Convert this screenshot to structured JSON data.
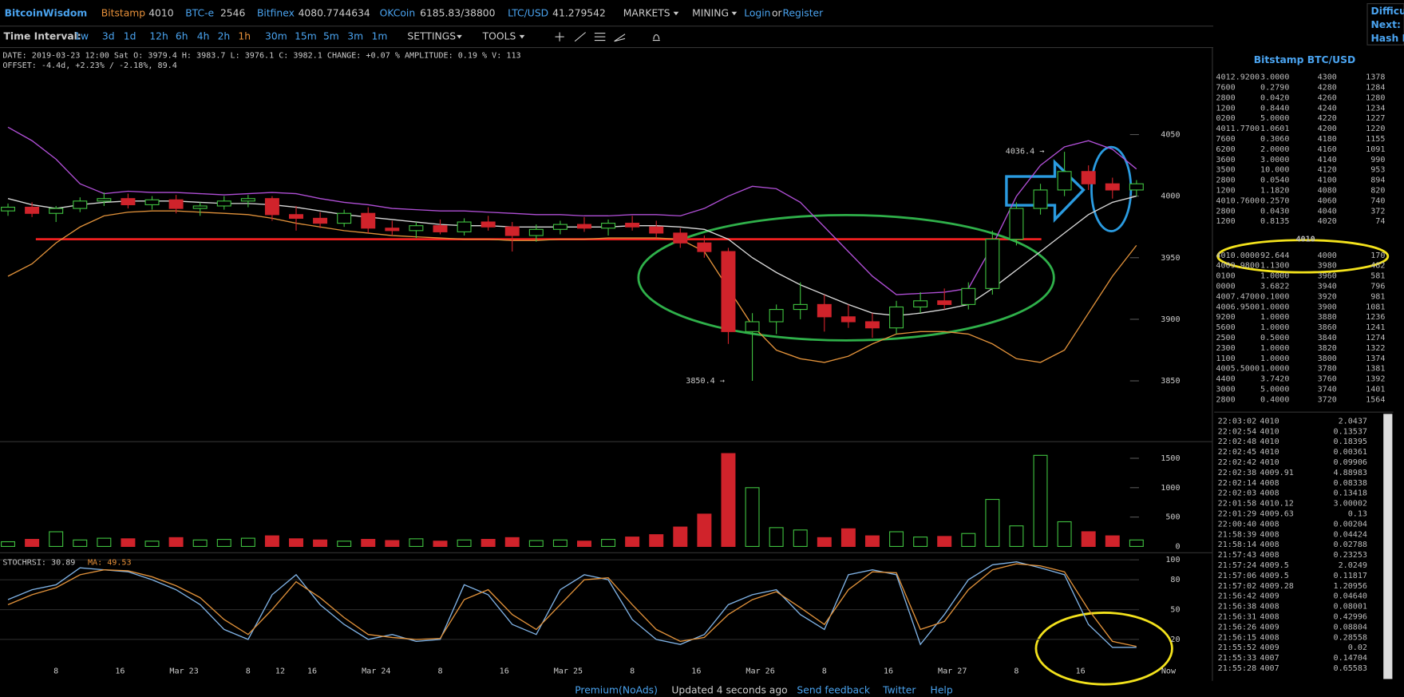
{
  "header": {
    "logo": "BitcoinWisdom",
    "tickers": [
      {
        "market": "Bitstamp",
        "price": "4010"
      },
      {
        "market": "BTC-e",
        "price": "2546"
      },
      {
        "market": "Bitfinex",
        "price": "4080.7744634"
      },
      {
        "market": "OKCoin",
        "price": "6185.83/38800"
      },
      {
        "market": "LTC/USD",
        "price": "41.279542"
      }
    ],
    "menus": [
      "MARKETS",
      "MINING"
    ],
    "login": "Login",
    "or": "or",
    "register": "Register",
    "side_box": [
      "Difficult",
      "Next:",
      "Hash Ra"
    ]
  },
  "toolbar": {
    "label": "Time Interval:",
    "intervals": [
      "1w",
      "3d",
      "1d",
      "12h",
      "6h",
      "4h",
      "2h",
      "1h",
      "30m",
      "15m",
      "5m",
      "3m",
      "1m"
    ],
    "active_index": 7,
    "settings": "SETTINGS",
    "tools": "TOOLS"
  },
  "info": {
    "line1": "DATE: 2019-03-23 12:00 Sat   O: 3979.4   H: 3983.7   L: 3976.1   C: 3982.1   CHANGE: +0.07 %   AMPLITUDE: 0.19 %   V: 113",
    "line2": "OFFSET: -4.4d, +2.23% / -2.18%, 89.4"
  },
  "chart_data": [
    {
      "type": "candlestick",
      "xlim": [
        1,
        147
      ],
      "ylim": [
        3805,
        4085
      ],
      "yticks": [
        3850,
        3900,
        3950,
        4000,
        4050
      ],
      "up_color": "#3fbf3f",
      "down_color": "#d0232b",
      "annotations": [
        {
          "text": "4036.4 →"
        },
        {
          "text": "3850.4 →"
        }
      ],
      "x": [
        2,
        5,
        8,
        11,
        14,
        17,
        20,
        23,
        26,
        29,
        32,
        35,
        38,
        41,
        44,
        47,
        50,
        53,
        56,
        59,
        62,
        65,
        68,
        71,
        74,
        77,
        80,
        83,
        86,
        89,
        92,
        95,
        98,
        101,
        104,
        107,
        110,
        113,
        116,
        119,
        122,
        125,
        128,
        131,
        134,
        137,
        140,
        143
      ],
      "open": [
        3988,
        3991,
        3986,
        3990,
        3996,
        3998,
        3993,
        3997,
        3990,
        3992,
        3996,
        3998,
        3985,
        3982,
        3978,
        3986,
        3974,
        3972,
        3976,
        3971,
        3979,
        3975,
        3968,
        3973,
        3977,
        3974,
        3978,
        3975,
        3970,
        3962,
        3955,
        3890,
        3898,
        3908,
        3912,
        3902,
        3898,
        3893,
        3910,
        3915,
        3912,
        3925,
        3965,
        3990,
        4005,
        4020,
        4010,
        4005
      ],
      "high": [
        3994,
        3995,
        3992,
        3999,
        4003,
        4002,
        4000,
        4001,
        3995,
        4000,
        4001,
        4000,
        3992,
        3987,
        3989,
        3991,
        3980,
        3979,
        3981,
        3982,
        3984,
        3979,
        3977,
        3980,
        3983,
        3981,
        3984,
        3980,
        3974,
        3968,
        3958,
        3905,
        3912,
        3930,
        3920,
        3912,
        3905,
        3915,
        3922,
        3925,
        3930,
        3972,
        3995,
        4010,
        4036,
        4025,
        4015,
        4013
      ],
      "low": [
        3984,
        3983,
        3979,
        3987,
        3992,
        3990,
        3989,
        3986,
        3984,
        3989,
        3991,
        3980,
        3972,
        3974,
        3975,
        3970,
        3968,
        3966,
        3969,
        3968,
        3972,
        3955,
        3963,
        3969,
        3971,
        3968,
        3972,
        3966,
        3958,
        3950,
        3880,
        3850,
        3888,
        3900,
        3890,
        3893,
        3885,
        3888,
        3905,
        3908,
        3908,
        3920,
        3960,
        3985,
        4000,
        4005,
        3998,
        4000
      ],
      "close": [
        3991,
        3986,
        3990,
        3996,
        3998,
        3993,
        3997,
        3990,
        3992,
        3996,
        3998,
        3985,
        3982,
        3978,
        3986,
        3974,
        3972,
        3976,
        3971,
        3979,
        3975,
        3968,
        3973,
        3977,
        3974,
        3978,
        3975,
        3970,
        3962,
        3955,
        3890,
        3898,
        3908,
        3912,
        3902,
        3898,
        3893,
        3910,
        3915,
        3912,
        3925,
        3965,
        3990,
        4005,
        4020,
        4010,
        4005,
        4010
      ],
      "series": [
        {
          "color": "#b04fd6",
          "values": [
            4056,
            4045,
            4030,
            4010,
            4002,
            4004,
            4003,
            4003,
            4002,
            4001,
            4002,
            4003,
            4002,
            3998,
            3995,
            3993,
            3990,
            3989,
            3988,
            3988,
            3987,
            3986,
            3985,
            3985,
            3984,
            3984,
            3985,
            3985,
            3984,
            3990,
            4000,
            4008,
            4006,
            3995,
            3975,
            3955,
            3935,
            3920,
            3921,
            3922,
            3925,
            3960,
            4000,
            4025,
            4040,
            4045,
            4038,
            4022
          ]
        },
        {
          "color": "#d8d8d8",
          "values": [
            3998,
            3993,
            3990,
            3993,
            3995,
            3996,
            3996,
            3996,
            3995,
            3994,
            3994,
            3993,
            3991,
            3988,
            3985,
            3983,
            3981,
            3979,
            3977,
            3976,
            3976,
            3975,
            3975,
            3975,
            3975,
            3975,
            3976,
            3976,
            3975,
            3973,
            3965,
            3950,
            3938,
            3928,
            3920,
            3912,
            3905,
            3903,
            3905,
            3908,
            3912,
            3925,
            3940,
            3955,
            3970,
            3985,
            3995,
            4000
          ]
        },
        {
          "color": "#e0913a",
          "values": [
            3935,
            3945,
            3962,
            3975,
            3984,
            3987,
            3988,
            3988,
            3987,
            3986,
            3985,
            3982,
            3978,
            3975,
            3972,
            3970,
            3968,
            3967,
            3966,
            3965,
            3965,
            3964,
            3964,
            3965,
            3965,
            3966,
            3966,
            3966,
            3965,
            3955,
            3925,
            3895,
            3875,
            3868,
            3865,
            3870,
            3880,
            3888,
            3890,
            3890,
            3888,
            3880,
            3868,
            3865,
            3875,
            3905,
            3935,
            3960
          ]
        }
      ]
    },
    {
      "type": "bar",
      "xlim": [
        1,
        147
      ],
      "ylim": [
        0,
        1600
      ],
      "yticks": [
        0,
        500,
        1000,
        1500
      ],
      "x": [
        2,
        5,
        8,
        11,
        14,
        17,
        20,
        23,
        26,
        29,
        32,
        35,
        38,
        41,
        44,
        47,
        50,
        53,
        56,
        59,
        62,
        65,
        68,
        71,
        74,
        77,
        80,
        83,
        86,
        89,
        92,
        95,
        98,
        101,
        104,
        107,
        110,
        113,
        116,
        119,
        122,
        125,
        128,
        131,
        134,
        137,
        140,
        143
      ],
      "values": [
        80,
        120,
        250,
        110,
        140,
        130,
        90,
        150,
        110,
        120,
        140,
        180,
        130,
        110,
        90,
        120,
        100,
        130,
        90,
        110,
        120,
        150,
        100,
        110,
        90,
        120,
        160,
        200,
        330,
        550,
        1580,
        1000,
        320,
        280,
        150,
        300,
        180,
        250,
        160,
        170,
        220,
        800,
        350,
        1550,
        420,
        250,
        180,
        110
      ]
    },
    {
      "type": "line",
      "xlim": [
        1,
        147
      ],
      "ylim": [
        0,
        100
      ],
      "yticks": [
        20,
        50,
        80,
        100
      ],
      "grid": true,
      "label": "STOCHRSI: 30.89",
      "ma_label": "MA: 49.53",
      "xticks": [
        {
          "value": 8,
          "label": "8"
        },
        {
          "value": 16,
          "label": "16"
        },
        {
          "value": 24,
          "label": "Mar 23"
        },
        {
          "value": 32,
          "label": "8"
        },
        {
          "value": 36,
          "label": "12"
        },
        {
          "value": 40,
          "label": "16"
        },
        {
          "value": 48,
          "label": "Mar 24"
        },
        {
          "value": 56,
          "label": "8"
        },
        {
          "value": 64,
          "label": "16"
        },
        {
          "value": 72,
          "label": "Mar 25"
        },
        {
          "value": 80,
          "label": "8"
        },
        {
          "value": 88,
          "label": "16"
        },
        {
          "value": 96,
          "label": "Mar 26"
        },
        {
          "value": 104,
          "label": "8"
        },
        {
          "value": 112,
          "label": "16"
        },
        {
          "value": 120,
          "label": "Mar 27"
        },
        {
          "value": 128,
          "label": "8"
        },
        {
          "value": 136,
          "label": "16"
        },
        {
          "value": 147,
          "label": "Now"
        }
      ],
      "x": [
        2,
        5,
        8,
        11,
        14,
        17,
        20,
        23,
        26,
        29,
        32,
        35,
        38,
        41,
        44,
        47,
        50,
        53,
        56,
        59,
        62,
        65,
        68,
        71,
        74,
        77,
        80,
        83,
        86,
        89,
        92,
        95,
        98,
        101,
        104,
        107,
        110,
        113,
        116,
        119,
        122,
        125,
        128,
        131,
        134,
        137,
        140,
        143
      ],
      "series": [
        {
          "color": "#7fb2e5",
          "values": [
            60,
            70,
            75,
            92,
            90,
            88,
            80,
            70,
            55,
            30,
            20,
            65,
            85,
            55,
            35,
            20,
            25,
            18,
            20,
            75,
            65,
            35,
            25,
            70,
            85,
            80,
            40,
            20,
            15,
            25,
            55,
            65,
            70,
            45,
            30,
            85,
            90,
            85,
            15,
            45,
            80,
            95,
            98,
            92,
            85,
            35,
            12,
            12
          ]
        },
        {
          "color": "#e0913a",
          "values": [
            55,
            65,
            72,
            85,
            90,
            89,
            83,
            74,
            62,
            40,
            25,
            50,
            78,
            62,
            42,
            25,
            22,
            20,
            21,
            60,
            70,
            45,
            30,
            55,
            80,
            82,
            55,
            30,
            18,
            22,
            45,
            60,
            68,
            52,
            35,
            70,
            88,
            87,
            30,
            38,
            70,
            90,
            96,
            94,
            88,
            50,
            18,
            13
          ]
        }
      ]
    }
  ],
  "order_book": {
    "title": "Bitstamp BTC/USD",
    "last": "4010",
    "asks": [
      [
        "4012.9200",
        "3.0000",
        "4300",
        "1378"
      ],
      [
        "7600",
        "0.2790",
        "4280",
        "1284"
      ],
      [
        "2800",
        "0.0420",
        "4260",
        "1280"
      ],
      [
        "1200",
        "0.8440",
        "4240",
        "1234"
      ],
      [
        "0200",
        "5.0000",
        "4220",
        "1227"
      ],
      [
        "4011.7700",
        "1.0601",
        "4200",
        "1220"
      ],
      [
        "7600",
        "0.3060",
        "4180",
        "1155"
      ],
      [
        "6200",
        "2.0000",
        "4160",
        "1091"
      ],
      [
        "3600",
        "3.0000",
        "4140",
        "990"
      ],
      [
        "3500",
        "10.000",
        "4120",
        "953"
      ],
      [
        "2800",
        "0.0540",
        "4100",
        "894"
      ],
      [
        "1200",
        "1.1820",
        "4080",
        "820"
      ],
      [
        "4010.7600",
        "0.2570",
        "4060",
        "740"
      ],
      [
        "2800",
        "0.0430",
        "4040",
        "372"
      ],
      [
        "1200",
        "0.8135",
        "4020",
        "74"
      ]
    ],
    "bids": [
      [
        "4010.0000",
        "92.644",
        "4000",
        "170"
      ],
      [
        "4009.9800",
        "1.1300",
        "3980",
        "482"
      ],
      [
        "0100",
        "1.0000",
        "3960",
        "581"
      ],
      [
        "0000",
        "3.6822",
        "3940",
        "796"
      ],
      [
        "4007.4700",
        "0.1000",
        "3920",
        "981"
      ],
      [
        "4006.9500",
        "1.0000",
        "3900",
        "1081"
      ],
      [
        "9200",
        "1.0000",
        "3880",
        "1236"
      ],
      [
        "5600",
        "1.0000",
        "3860",
        "1241"
      ],
      [
        "2500",
        "0.5000",
        "3840",
        "1274"
      ],
      [
        "2300",
        "1.0000",
        "3820",
        "1322"
      ],
      [
        "1100",
        "1.0000",
        "3800",
        "1374"
      ],
      [
        "4005.5000",
        "1.0000",
        "3780",
        "1381"
      ],
      [
        "4400",
        "3.7420",
        "3760",
        "1392"
      ],
      [
        "3000",
        "5.0000",
        "3740",
        "1401"
      ],
      [
        "2800",
        "0.4000",
        "3720",
        "1564"
      ]
    ]
  },
  "trades": [
    {
      "time": "22:03:02",
      "price": "4010",
      "amount": "2.0437",
      "side": "sell"
    },
    {
      "time": "22:02:54",
      "price": "4010",
      "amount": "0.13537",
      "side": "sell"
    },
    {
      "time": "22:02:48",
      "price": "4010",
      "amount": "0.18395",
      "side": "sell"
    },
    {
      "time": "22:02:45",
      "price": "4010",
      "amount": "0.00361",
      "side": "buy"
    },
    {
      "time": "22:02:42",
      "price": "4010",
      "amount": "0.09906",
      "side": "buy"
    },
    {
      "time": "22:02:38",
      "price": "4009.91",
      "amount": "4.88983",
      "side": "buy"
    },
    {
      "time": "22:02:14",
      "price": "4008",
      "amount": "0.08338",
      "side": "sell"
    },
    {
      "time": "22:02:03",
      "price": "4008",
      "amount": "0.13418",
      "side": "sell"
    },
    {
      "time": "22:01:58",
      "price": "4010.12",
      "amount": "3.00002",
      "side": "buy"
    },
    {
      "time": "22:01:29",
      "price": "4009.63",
      "amount": "0.13",
      "side": "buy"
    },
    {
      "time": "22:00:40",
      "price": "4008",
      "amount": "0.00204",
      "side": "sell"
    },
    {
      "time": "21:58:39",
      "price": "4008",
      "amount": "0.04424",
      "side": "sell"
    },
    {
      "time": "21:58:14",
      "price": "4008",
      "amount": "0.02788",
      "side": "sell"
    },
    {
      "time": "21:57:43",
      "price": "4008",
      "amount": "0.23253",
      "side": "sell"
    },
    {
      "time": "21:57:24",
      "price": "4009.5",
      "amount": "2.0249",
      "side": "buy"
    },
    {
      "time": "21:57:06",
      "price": "4009.5",
      "amount": "0.11817",
      "side": "buy"
    },
    {
      "time": "21:57:02",
      "price": "4009.28",
      "amount": "1.20956",
      "side": "buy"
    },
    {
      "time": "21:56:42",
      "price": "4009",
      "amount": "0.04640",
      "side": "buy"
    },
    {
      "time": "21:56:38",
      "price": "4008",
      "amount": "0.08001",
      "side": "sell"
    },
    {
      "time": "21:56:31",
      "price": "4008",
      "amount": "0.42996",
      "side": "sell"
    },
    {
      "time": "21:56:26",
      "price": "4009",
      "amount": "0.08804",
      "side": "buy"
    },
    {
      "time": "21:56:15",
      "price": "4008",
      "amount": "0.28558",
      "side": "sell"
    },
    {
      "time": "21:55:52",
      "price": "4009",
      "amount": "0.02",
      "side": "buy"
    },
    {
      "time": "21:55:33",
      "price": "4007",
      "amount": "0.14704",
      "side": "sell"
    },
    {
      "time": "21:55:28",
      "price": "4007",
      "amount": "0.65583",
      "side": "sell"
    }
  ],
  "footer": [
    "Premium(NoAds)",
    "Updated 4 seconds ago",
    "Send feedback",
    "Twitter",
    "Help"
  ]
}
